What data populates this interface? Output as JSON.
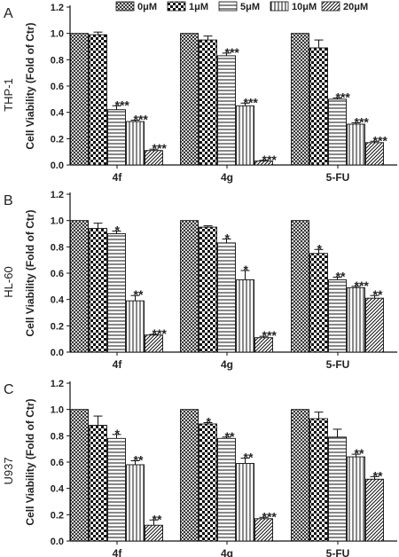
{
  "figure": {
    "legend_labels": [
      "0μM",
      "1μM",
      "5μM",
      "10μM",
      "20μM"
    ]
  },
  "chart_data": [
    {
      "type": "bar",
      "panel": "A",
      "cell_line": "THP-1",
      "ylabel": "Cell Viability (Fold of Ctr)",
      "ylim": [
        0,
        1.2
      ],
      "yticks": [
        "0.0",
        "0.2",
        "0.4",
        "0.6",
        "0.8",
        "1.0",
        "1.2"
      ],
      "categories": [
        "4f",
        "4g",
        "5-FU"
      ],
      "series": [
        {
          "name": "0μM",
          "values": [
            1.0,
            1.0,
            1.0
          ],
          "errors": [
            0,
            0,
            0
          ],
          "sig": [
            "",
            "",
            ""
          ]
        },
        {
          "name": "1μM",
          "values": [
            0.99,
            0.95,
            0.89
          ],
          "errors": [
            0.02,
            0.03,
            0.06
          ],
          "sig": [
            "",
            "",
            ""
          ]
        },
        {
          "name": "5μM",
          "values": [
            0.42,
            0.83,
            0.5
          ],
          "errors": [
            0.03,
            0.02,
            0.01
          ],
          "sig": [
            "***",
            "***",
            "***"
          ]
        },
        {
          "name": "10μM",
          "values": [
            0.33,
            0.45,
            0.31
          ],
          "errors": [
            0.01,
            0.02,
            0.01
          ],
          "sig": [
            "***",
            "***",
            "***"
          ]
        },
        {
          "name": "20μM",
          "values": [
            0.11,
            0.03,
            0.17
          ],
          "errors": [
            0.01,
            0.005,
            0.01
          ],
          "sig": [
            "***",
            "***",
            "***"
          ]
        }
      ]
    },
    {
      "type": "bar",
      "panel": "B",
      "cell_line": "HL-60",
      "ylabel": "Cell Viability (Fold of Ctr)",
      "ylim": [
        0,
        1.2
      ],
      "yticks": [
        "0.0",
        "0.2",
        "0.4",
        "0.6",
        "0.8",
        "1.0",
        "1.2"
      ],
      "categories": [
        "4f",
        "4g",
        "5-FU"
      ],
      "series": [
        {
          "name": "0μM",
          "values": [
            1.0,
            1.0,
            1.0
          ],
          "errors": [
            0,
            0,
            0
          ],
          "sig": [
            "",
            "",
            ""
          ]
        },
        {
          "name": "1μM",
          "values": [
            0.94,
            0.95,
            0.75
          ],
          "errors": [
            0.04,
            0.01,
            0.03
          ],
          "sig": [
            "",
            "",
            "*"
          ]
        },
        {
          "name": "5μM",
          "values": [
            0.9,
            0.83,
            0.55
          ],
          "errors": [
            0.02,
            0.03,
            0.02
          ],
          "sig": [
            "*",
            "*",
            "**"
          ]
        },
        {
          "name": "10μM",
          "values": [
            0.39,
            0.55,
            0.49
          ],
          "errors": [
            0.04,
            0.07,
            0.01
          ],
          "sig": [
            "**",
            "*",
            "***"
          ]
        },
        {
          "name": "20μM",
          "values": [
            0.13,
            0.11,
            0.41
          ],
          "errors": [
            0.005,
            0.01,
            0.02
          ],
          "sig": [
            "***",
            "***",
            "**"
          ]
        }
      ]
    },
    {
      "type": "bar",
      "panel": "C",
      "cell_line": "U937",
      "ylabel": "Cell Viability (Fold of Ctr)",
      "ylim": [
        0,
        1.2
      ],
      "yticks": [
        "0.0",
        "0.2",
        "0.4",
        "0.6",
        "0.8",
        "1.0",
        "1.2"
      ],
      "categories": [
        "4f",
        "4g",
        "5-FU"
      ],
      "series": [
        {
          "name": "0μM",
          "values": [
            1.0,
            1.0,
            1.0
          ],
          "errors": [
            0,
            0,
            0
          ],
          "sig": [
            "",
            "",
            ""
          ]
        },
        {
          "name": "1μM",
          "values": [
            0.88,
            0.89,
            0.93
          ],
          "errors": [
            0.07,
            0.01,
            0.05
          ],
          "sig": [
            "",
            "*",
            ""
          ]
        },
        {
          "name": "5μM",
          "values": [
            0.78,
            0.78,
            0.79
          ],
          "errors": [
            0.03,
            0.01,
            0.06
          ],
          "sig": [
            "*",
            "**",
            ""
          ]
        },
        {
          "name": "10μM",
          "values": [
            0.58,
            0.59,
            0.64
          ],
          "errors": [
            0.03,
            0.04,
            0.02
          ],
          "sig": [
            "**",
            "**",
            "**"
          ]
        },
        {
          "name": "20μM",
          "values": [
            0.12,
            0.17,
            0.47
          ],
          "errors": [
            0.04,
            0.01,
            0.02
          ],
          "sig": [
            "**",
            "***",
            "**"
          ]
        }
      ]
    }
  ]
}
